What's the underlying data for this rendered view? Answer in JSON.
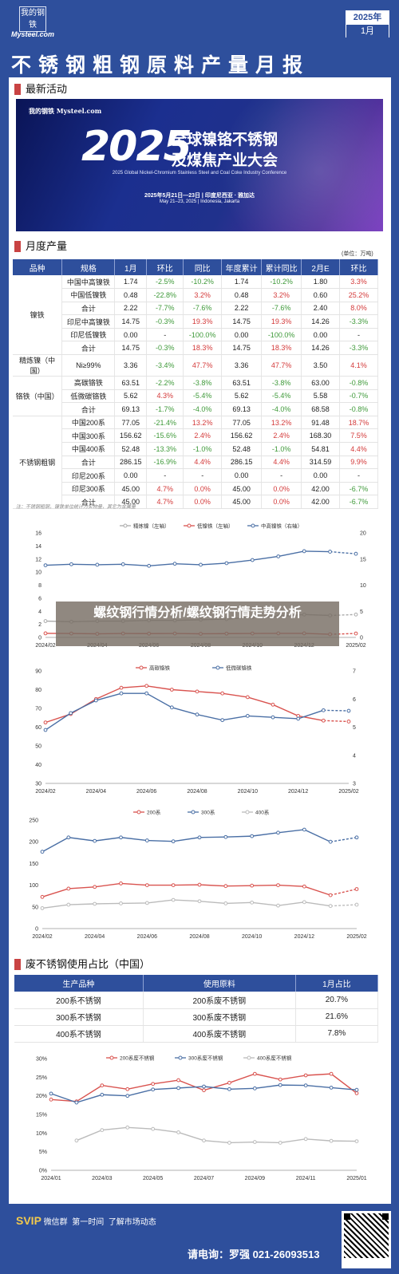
{
  "header": {
    "logo_text": "我的钢铁",
    "logo_sub": "Mysteel.com",
    "year": "2025年",
    "month": "1月",
    "title": "不锈钢粗钢原料产量月报"
  },
  "sections": {
    "activity": "最新活动",
    "monthly": "月度产量",
    "scrap": "废不锈钢使用占比（中国）"
  },
  "banner": {
    "logo": "我的钢铁 Mysteel.com",
    "big": "2025",
    "line1": "全球镍铬不锈钢",
    "line2": "及煤焦产业大会",
    "en": "2025 Global Nickel-Chromium Stainless Steel and Coal Coke Industry Conference",
    "date_cn": "2025年5月21日—23日 | 印度尼西亚 · 雅加达",
    "date_en": "May 21–23, 2025 | Indonesia, Jakarta"
  },
  "unit": "(单位：万吨)",
  "table_headers": [
    "品种",
    "规格",
    "1月",
    "环比",
    "同比",
    "年度累计",
    "累计同比",
    "2月E",
    "环比"
  ],
  "table_rows": [
    [
      "",
      "中国中高镍铁",
      "1.74",
      "-2.5%",
      "-10.2%",
      "1.74",
      "-10.2%",
      "1.80",
      "3.3%"
    ],
    [
      "",
      "中国低镍铁",
      "0.48",
      "-22.8%",
      "3.2%",
      "0.48",
      "3.2%",
      "0.60",
      "25.2%"
    ],
    [
      "",
      "合计",
      "2.22",
      "-7.7%",
      "-7.6%",
      "2.22",
      "-7.6%",
      "2.40",
      "8.0%"
    ],
    [
      "",
      "印尼中高镍铁",
      "14.75",
      "-0.3%",
      "19.3%",
      "14.75",
      "19.3%",
      "14.26",
      "-3.3%"
    ],
    [
      "",
      "印尼低镍铁",
      "0.00",
      "-",
      "-100.0%",
      "0.00",
      "-100.0%",
      "0.00",
      "-"
    ],
    [
      "",
      "合计",
      "14.75",
      "-0.3%",
      "18.3%",
      "14.75",
      "18.3%",
      "14.26",
      "-3.3%"
    ],
    [
      "精炼镍（中国）",
      "Ni≥99%",
      "3.36",
      "-3.4%",
      "47.7%",
      "3.36",
      "47.7%",
      "3.50",
      "4.1%"
    ],
    [
      "",
      "高碳铬铁",
      "63.51",
      "-2.2%",
      "-3.8%",
      "63.51",
      "-3.8%",
      "63.00",
      "-0.8%"
    ],
    [
      "",
      "低微碳铬铁",
      "5.62",
      "4.3%",
      "-5.4%",
      "5.62",
      "-5.4%",
      "5.58",
      "-0.7%"
    ],
    [
      "",
      "合计",
      "69.13",
      "-1.7%",
      "-4.0%",
      "69.13",
      "-4.0%",
      "68.58",
      "-0.8%"
    ],
    [
      "",
      "中国200系",
      "77.05",
      "-21.4%",
      "13.2%",
      "77.05",
      "13.2%",
      "91.48",
      "18.7%"
    ],
    [
      "",
      "中国300系",
      "156.62",
      "-15.6%",
      "2.4%",
      "156.62",
      "2.4%",
      "168.30",
      "7.5%"
    ],
    [
      "",
      "中国400系",
      "52.48",
      "-13.3%",
      "-1.0%",
      "52.48",
      "-1.0%",
      "54.81",
      "4.4%"
    ],
    [
      "",
      "合计",
      "286.15",
      "-16.9%",
      "4.4%",
      "286.15",
      "4.4%",
      "314.59",
      "9.9%"
    ],
    [
      "",
      "印尼200系",
      "0.00",
      "-",
      "-",
      "0.00",
      "-",
      "0.00",
      "-"
    ],
    [
      "",
      "印尼300系",
      "45.00",
      "4.7%",
      "0.0%",
      "45.00",
      "0.0%",
      "42.00",
      "-6.7%"
    ],
    [
      "",
      "合计",
      "45.00",
      "4.7%",
      "0.0%",
      "45.00",
      "0.0%",
      "42.00",
      "-6.7%"
    ]
  ],
  "table_groups": [
    {
      "label": "镍铁",
      "row": 0,
      "span": 6
    },
    {
      "label": "精炼镍（中国）",
      "row": 6,
      "span": 1
    },
    {
      "label": "铬铁（中国）",
      "row": 7,
      "span": 3
    },
    {
      "label": "不锈钢粗钢",
      "row": 10,
      "span": 7
    }
  ],
  "note": "注：不锈钢粗钢，镍铁单位统计为实物量，其它为金属量",
  "overlay": "螺纹钢行情分析/螺纹钢行情走势分析",
  "chart_data": [
    {
      "type": "line",
      "x": [
        "2024/02",
        "2024/03",
        "2024/04",
        "2024/05",
        "2024/06",
        "2024/07",
        "2024/08",
        "2024/09",
        "2024/10",
        "2024/11",
        "2024/12",
        "2025/01",
        "2025/02"
      ],
      "xticks": [
        "2024/02",
        "2024/04",
        "2024/06",
        "2024/08",
        "2024/10",
        "2024/12",
        "2025/02"
      ],
      "ylim": [
        0,
        16
      ],
      "ylim_right": [
        0,
        20
      ],
      "series": [
        {
          "name": "精炼镍（左轴）",
          "axis": "left",
          "color": "#aaaaaa",
          "values": [
            2.5,
            2.4,
            2.5,
            2.5,
            2.6,
            2.6,
            2.7,
            2.8,
            3.1,
            3.2,
            3.5,
            3.36,
            3.5
          ]
        },
        {
          "name": "低镍铁（左轴）",
          "axis": "left",
          "color": "#d9534f",
          "values": [
            0.62,
            0.6,
            0.55,
            0.6,
            0.58,
            0.6,
            0.55,
            0.58,
            0.6,
            0.62,
            0.62,
            0.48,
            0.6
          ]
        },
        {
          "name": "中高镍铁（右轴）",
          "axis": "right",
          "color": "#4a6fa5",
          "values": [
            13.8,
            14.0,
            13.9,
            14.0,
            13.7,
            14.1,
            13.9,
            14.2,
            14.8,
            15.5,
            16.5,
            16.4,
            16.0
          ]
        }
      ]
    },
    {
      "type": "line",
      "x": [
        "2024/02",
        "2024/03",
        "2024/04",
        "2024/05",
        "2024/06",
        "2024/07",
        "2024/08",
        "2024/09",
        "2024/10",
        "2024/11",
        "2024/12",
        "2025/01",
        "2025/02"
      ],
      "xticks": [
        "2024/02",
        "2024/04",
        "2024/06",
        "2024/08",
        "2024/10",
        "2024/12",
        "2025/02"
      ],
      "ylim": [
        30,
        90
      ],
      "ylim_right": [
        3,
        7
      ],
      "series": [
        {
          "name": "高碳铬铁",
          "axis": "left",
          "color": "#d9534f",
          "values": [
            62.5,
            67,
            75,
            81,
            82,
            80,
            79,
            78,
            76,
            72,
            66,
            63.5,
            63
          ]
        },
        {
          "name": "低微碳铬铁",
          "axis": "right",
          "color": "#4a6fa5",
          "values": [
            4.9,
            5.5,
            5.95,
            6.2,
            6.2,
            5.7,
            5.45,
            5.25,
            5.4,
            5.35,
            5.3,
            5.6,
            5.58
          ]
        }
      ]
    },
    {
      "type": "line",
      "x": [
        "2024/02",
        "2024/03",
        "2024/04",
        "2024/05",
        "2024/06",
        "2024/07",
        "2024/08",
        "2024/09",
        "2024/10",
        "2024/11",
        "2024/12",
        "2025/01",
        "2025/02"
      ],
      "xticks": [
        "2024/02",
        "2024/04",
        "2024/06",
        "2024/08",
        "2024/10",
        "2024/12",
        "2025/02"
      ],
      "ylim": [
        0,
        250
      ],
      "series": [
        {
          "name": "200系",
          "color": "#d9534f",
          "values": [
            73,
            92,
            96,
            104,
            100,
            100,
            101,
            98,
            99,
            100,
            97,
            77,
            91
          ]
        },
        {
          "name": "300系",
          "color": "#4a6fa5",
          "values": [
            177,
            210,
            202,
            210,
            203,
            201,
            210,
            211,
            213,
            221,
            228,
            200,
            210
          ]
        },
        {
          "name": "400系",
          "color": "#bbbbbb",
          "values": [
            47,
            55,
            57,
            58,
            59,
            66,
            63,
            58,
            60,
            53,
            61,
            52,
            55
          ]
        }
      ]
    },
    {
      "type": "line",
      "x": [
        "2024/01",
        "2024/02",
        "2024/03",
        "2024/04",
        "2024/05",
        "2024/06",
        "2024/07",
        "2024/08",
        "2024/09",
        "2024/10",
        "2024/11",
        "2024/12",
        "2025/01"
      ],
      "xticks": [
        "2024/01",
        "2024/03",
        "2024/05",
        "2024/07",
        "2024/09",
        "2024/11",
        "2025/01"
      ],
      "ylim": [
        0,
        30
      ],
      "yunit": "%",
      "series": [
        {
          "name": "200系废不锈钢",
          "color": "#d9534f",
          "values": [
            19.0,
            18.5,
            22.8,
            21.8,
            23.2,
            24.2,
            21.5,
            23.5,
            25.9,
            24.4,
            25.5,
            25.9,
            20.7
          ]
        },
        {
          "name": "300系废不锈钢",
          "color": "#4a6fa5",
          "values": [
            20.6,
            18.2,
            20.3,
            20.0,
            21.7,
            22.1,
            22.5,
            21.8,
            22.0,
            22.9,
            22.8,
            22.2,
            21.6
          ]
        },
        {
          "name": "400系废不锈钢",
          "color": "#bbbbbb",
          "values": [
            null,
            8.0,
            10.8,
            11.5,
            11.1,
            10.2,
            8.0,
            7.4,
            7.6,
            7.4,
            8.4,
            7.9,
            7.8
          ]
        }
      ]
    }
  ],
  "scrap_headers": [
    "生产品种",
    "使用原料",
    "1月占比"
  ],
  "scrap_rows": [
    [
      "200系不锈钢",
      "200系废不锈钢",
      "20.7%"
    ],
    [
      "300系不锈钢",
      "300系废不锈钢",
      "21.6%"
    ],
    [
      "400系不锈钢",
      "400系废不锈钢",
      "7.8%"
    ]
  ],
  "footer": {
    "vip": "SVIP",
    "wechat": "微信群",
    "first_time": "第一时间",
    "market": "了解市场动态",
    "phone": "请电询：罗强  021-26093513"
  }
}
